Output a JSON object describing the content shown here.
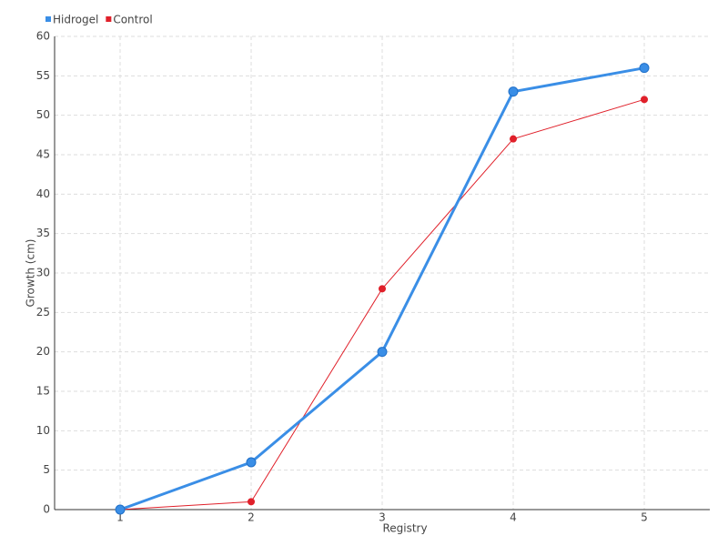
{
  "chart_data": {
    "type": "line",
    "x_label": "Registry",
    "y_label": "Growth (cm)",
    "categories": [
      "1",
      "2",
      "3",
      "4",
      "5"
    ],
    "series": [
      {
        "name": "Hidrogel",
        "color": "#3a8ee6",
        "values": [
          0,
          6,
          20,
          53,
          56
        ]
      },
      {
        "name": "Control",
        "color": "#e0202a",
        "values": [
          0,
          1,
          28,
          47,
          52
        ]
      }
    ],
    "ylim": [
      0,
      60
    ],
    "yticks": [
      0,
      5,
      10,
      15,
      20,
      25,
      30,
      35,
      40,
      45,
      50,
      55,
      60
    ],
    "grid": true,
    "legend": "top-left"
  }
}
